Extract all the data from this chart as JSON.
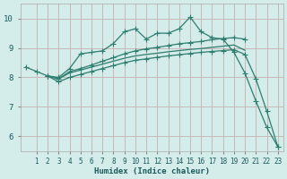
{
  "xlabel": "Humidex (Indice chaleur)",
  "bg_color": "#d4ecea",
  "grid_color": "#c8b8b8",
  "line_color": "#2e7d6e",
  "xlim": [
    -0.5,
    23.5
  ],
  "ylim": [
    5.5,
    10.5
  ],
  "xticks": [
    1,
    2,
    3,
    4,
    5,
    6,
    7,
    8,
    9,
    10,
    11,
    12,
    13,
    14,
    15,
    16,
    17,
    18,
    19,
    20,
    21,
    22,
    23
  ],
  "yticks": [
    6,
    7,
    8,
    9,
    10
  ],
  "line1_x": [
    0,
    1,
    2,
    3,
    4,
    5,
    6,
    7,
    8,
    9,
    10,
    11,
    12,
    13,
    14,
    15,
    16,
    17,
    18,
    19,
    20,
    21,
    22,
    23
  ],
  "line1_y": [
    8.35,
    8.2,
    8.05,
    8.0,
    8.3,
    8.8,
    8.85,
    8.9,
    9.15,
    9.55,
    9.65,
    9.3,
    9.5,
    9.5,
    9.65,
    10.05,
    9.55,
    9.35,
    9.3,
    8.85,
    8.15,
    7.2,
    6.3,
    5.65
  ],
  "line2_x": [
    2,
    3,
    4,
    5,
    6,
    7,
    8,
    9,
    10,
    11,
    12,
    13,
    14,
    15,
    16,
    17,
    18,
    19,
    20
  ],
  "line2_y": [
    8.05,
    7.95,
    8.2,
    8.3,
    8.42,
    8.55,
    8.67,
    8.8,
    8.9,
    8.97,
    9.02,
    9.08,
    9.14,
    9.18,
    9.22,
    9.28,
    9.32,
    9.35,
    9.3
  ],
  "line3_x": [
    2,
    3,
    4,
    5,
    6,
    7,
    8,
    9,
    10,
    11,
    12,
    13,
    14,
    15,
    16,
    17,
    18,
    19,
    20
  ],
  "line3_y": [
    8.05,
    7.95,
    8.15,
    8.25,
    8.35,
    8.45,
    8.55,
    8.65,
    8.73,
    8.78,
    8.82,
    8.87,
    8.91,
    8.95,
    8.98,
    9.02,
    9.06,
    9.1,
    8.92
  ],
  "line4_x": [
    2,
    3,
    4,
    5,
    6,
    7,
    8,
    9,
    10,
    11,
    12,
    13,
    14,
    15,
    16,
    17,
    18,
    19,
    20,
    21,
    22,
    23
  ],
  "line4_y": [
    8.05,
    7.85,
    8.0,
    8.1,
    8.2,
    8.3,
    8.4,
    8.5,
    8.58,
    8.63,
    8.68,
    8.73,
    8.77,
    8.81,
    8.85,
    8.88,
    8.91,
    8.94,
    8.78,
    7.95,
    6.85,
    5.65
  ]
}
